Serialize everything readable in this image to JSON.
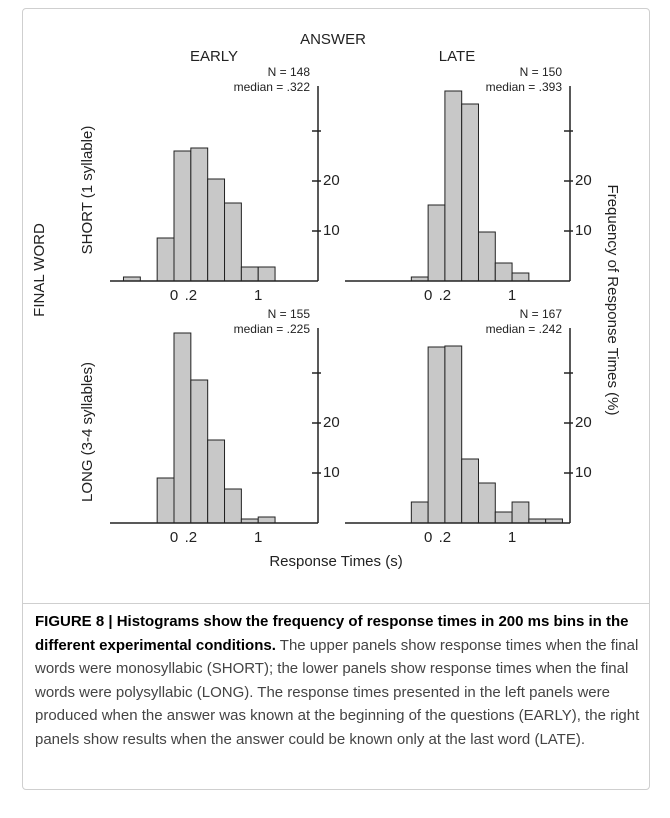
{
  "figure": {
    "column_header": "ANSWER",
    "columns": [
      "EARLY",
      "LATE"
    ],
    "row_header": "FINAL WORD",
    "rows": [
      "SHORT (1 syllable)",
      "LONG (3-4 syllables)"
    ],
    "y_label": "Frequency of Response Times (%)",
    "x_label": "Response Times (s)"
  },
  "chart_data": [
    {
      "type": "histogram",
      "annotations": [
        "N = 148",
        "median = .322"
      ],
      "bins": [
        -0.6,
        -0.4,
        -0.2,
        0,
        0.2,
        0.4,
        0.6,
        0.8,
        1.0,
        1.2
      ],
      "values": [
        0.8,
        0,
        8.6,
        26,
        26.6,
        20.4,
        15.6,
        2.8,
        2.8
      ],
      "color": "#c8c8c8",
      "xlim": [
        -0.76,
        1.71
      ],
      "ylim": [
        0,
        39
      ],
      "xticks": [
        0,
        {
          "value": 0.2,
          "label": ".2"
        },
        1
      ],
      "yticks": [
        10,
        20
      ],
      "minor_yticks": [
        30
      ]
    },
    {
      "type": "histogram",
      "annotations": [
        "N = 150",
        "median = .393"
      ],
      "bins": [
        -0.2,
        0,
        0.2,
        0.4,
        0.6,
        0.8,
        1.0,
        1.2
      ],
      "values": [
        0.8,
        15.2,
        38,
        35.4,
        9.8,
        3.6,
        1.6
      ],
      "color": "#c8c8c8",
      "xlim": [
        -0.99,
        1.69
      ],
      "ylim": [
        0,
        39
      ],
      "xticks": [
        0,
        {
          "value": 0.2,
          "label": ".2"
        },
        1
      ],
      "yticks": [
        10,
        20
      ],
      "minor_yticks": [
        30
      ]
    },
    {
      "type": "histogram",
      "annotations": [
        "N = 155",
        "median = .225"
      ],
      "bins": [
        -0.2,
        0,
        0.2,
        0.4,
        0.6,
        0.8,
        1.0,
        1.2
      ],
      "values": [
        9,
        38,
        28.6,
        16.6,
        6.8,
        0.8,
        1.2
      ],
      "color": "#c8c8c8",
      "xlim": [
        -0.76,
        1.71
      ],
      "ylim": [
        0,
        39
      ],
      "xticks": [
        0,
        {
          "value": 0.2,
          "label": ".2"
        },
        1
      ],
      "yticks": [
        10,
        20
      ],
      "minor_yticks": [
        30
      ]
    },
    {
      "type": "histogram",
      "annotations": [
        "N = 167",
        "median = .242"
      ],
      "bins": [
        -0.2,
        0,
        0.2,
        0.4,
        0.6,
        0.8,
        1.0,
        1.2,
        1.4,
        1.6
      ],
      "values": [
        4.2,
        35.2,
        35.4,
        12.8,
        8,
        2.2,
        4.2,
        0.8,
        0.8
      ],
      "color": "#c8c8c8",
      "xlim": [
        -0.99,
        1.69
      ],
      "ylim": [
        0,
        39
      ],
      "xticks": [
        0,
        {
          "value": 0.2,
          "label": ".2"
        },
        1
      ],
      "yticks": [
        10,
        20
      ],
      "minor_yticks": [
        30
      ]
    }
  ],
  "caption": {
    "title": "FIGURE 8 | Histograms show the frequency of response times in 200 ms bins in the different experimental conditions.",
    "text": "The upper panels show response times when the final words were monosyllabic (SHORT); the lower panels show response times when the final words were polysyllabic (LONG). The response times presented in the left panels were produced when the answer was known at the beginning of the questions (EARLY), the right panels show results when the answer could be known only at the last word (LATE)."
  }
}
